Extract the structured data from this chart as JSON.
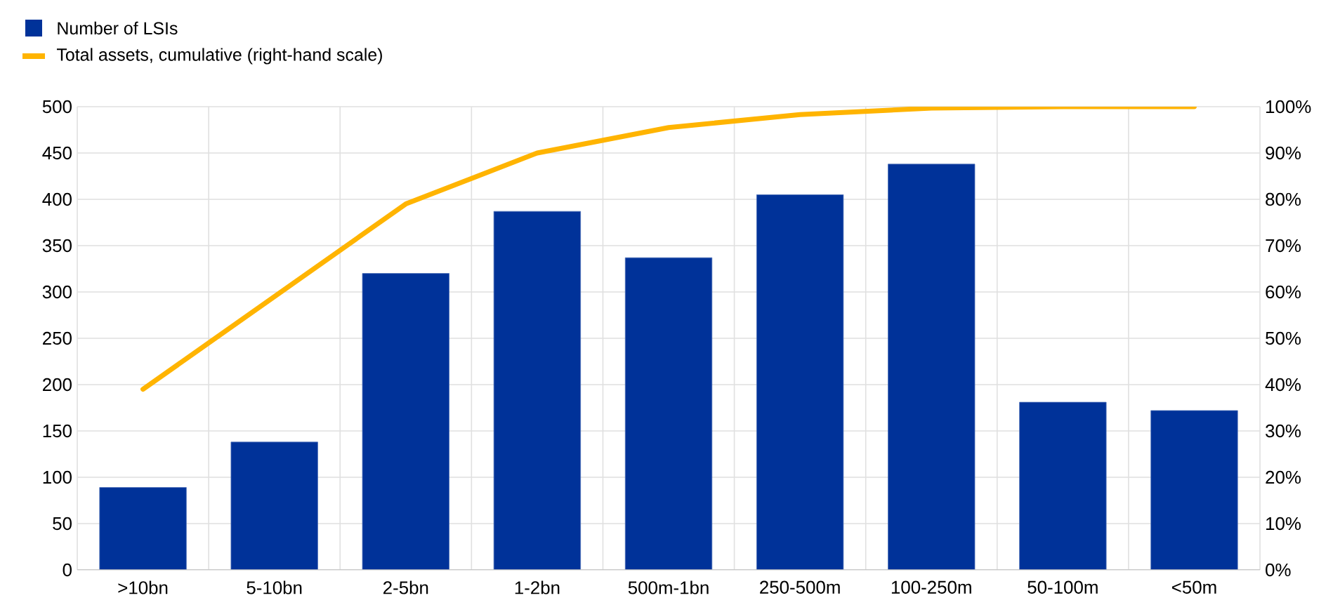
{
  "chart_data": {
    "type": "bar",
    "categories": [
      ">10bn",
      "5-10bn",
      "2-5bn",
      "1-2bn",
      "500m-1bn",
      "250-500m",
      "100-250m",
      "50-100m",
      "<50m"
    ],
    "series": [
      {
        "name": "Number of LSIs",
        "color": "#003299",
        "values": [
          89,
          138,
          320,
          387,
          337,
          405,
          438,
          181,
          172
        ]
      },
      {
        "name": "Total assets, cumulative (right-hand scale)",
        "type": "line",
        "axis": "y2",
        "color": "#ffb400",
        "values": [
          39,
          59,
          79,
          90,
          95.5,
          98.3,
          99.7,
          100,
          100
        ]
      }
    ],
    "ylim": [
      0,
      500
    ],
    "yticks": [
      0,
      50,
      100,
      150,
      200,
      250,
      300,
      350,
      400,
      450,
      500
    ],
    "y2lim": [
      0,
      100
    ],
    "y2ticks": [
      {
        "value": 0,
        "label": "0%"
      },
      {
        "value": 10,
        "label": "10%"
      },
      {
        "value": 20,
        "label": "20%"
      },
      {
        "value": 30,
        "label": "30%"
      },
      {
        "value": 40,
        "label": "40%"
      },
      {
        "value": 50,
        "label": "50%"
      },
      {
        "value": 60,
        "label": "60%"
      },
      {
        "value": 70,
        "label": "70%"
      },
      {
        "value": 80,
        "label": "80%"
      },
      {
        "value": 90,
        "label": "90%"
      },
      {
        "value": 100,
        "label": "100%"
      }
    ],
    "grid": true,
    "legend": "top left"
  }
}
